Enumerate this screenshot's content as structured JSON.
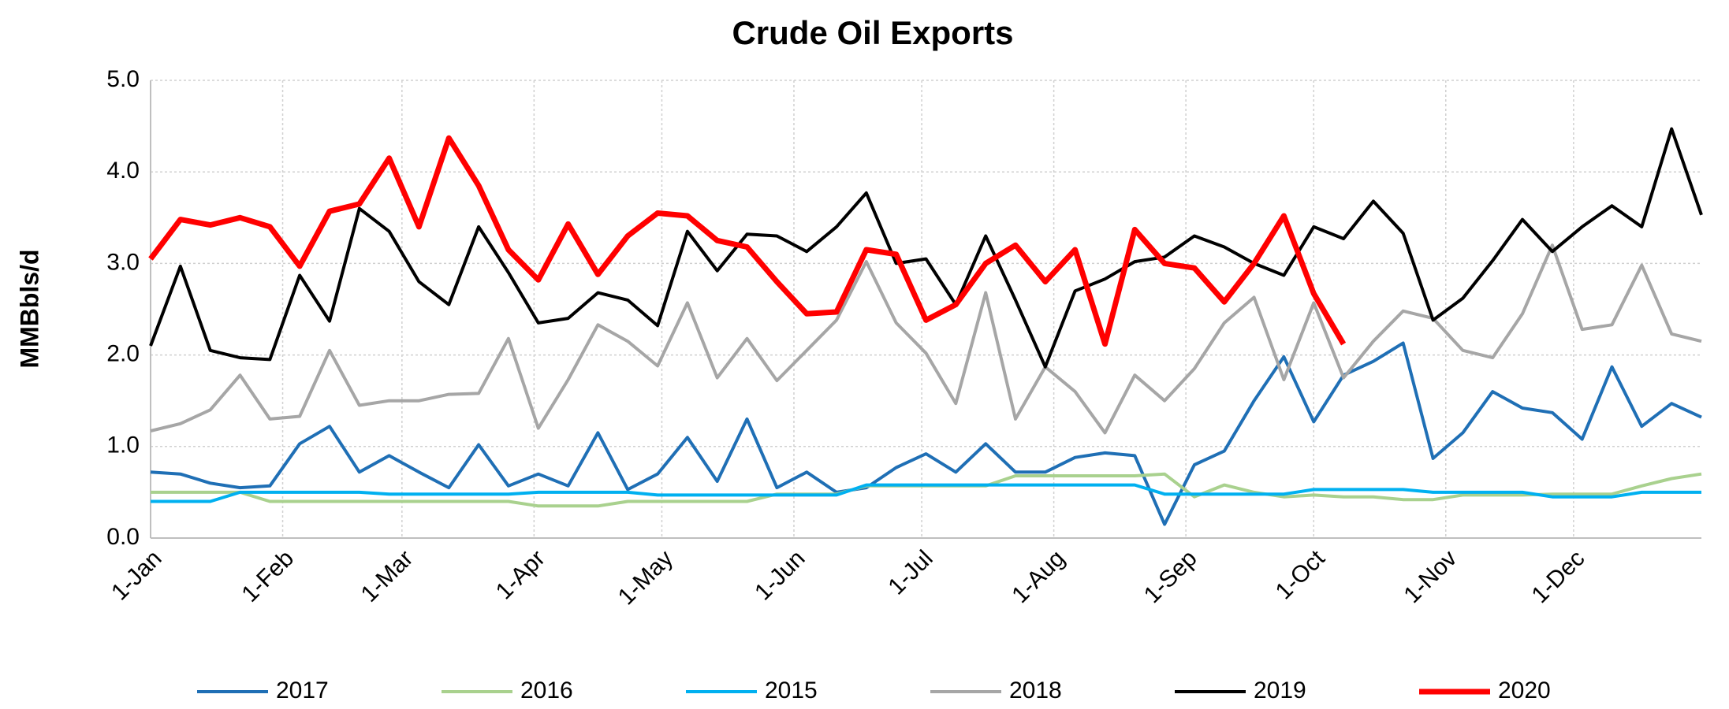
{
  "chart_data": {
    "type": "line",
    "title": "Crude Oil Exports",
    "y_label": "MMBbls/d",
    "x": [
      0,
      7,
      14,
      21,
      28,
      35,
      42,
      49,
      56,
      63,
      70,
      77,
      84,
      91,
      98,
      105,
      112,
      119,
      126,
      133,
      140,
      147,
      154,
      161,
      168,
      175,
      182,
      189,
      196,
      203,
      210,
      217,
      224,
      231,
      238,
      245,
      252,
      259,
      266,
      273,
      280,
      287,
      294,
      301,
      308,
      315,
      322,
      329,
      336,
      343,
      350,
      357,
      364
    ],
    "xlim": [
      0,
      364
    ],
    "xticks": [
      {
        "value": 0,
        "label": "1-Jan"
      },
      {
        "value": 31,
        "label": "1-Feb"
      },
      {
        "value": 59,
        "label": "1-Mar"
      },
      {
        "value": 90,
        "label": "1-Apr"
      },
      {
        "value": 120,
        "label": "1-May"
      },
      {
        "value": 151,
        "label": "1-Jun"
      },
      {
        "value": 181,
        "label": "1-Jul"
      },
      {
        "value": 212,
        "label": "1-Aug"
      },
      {
        "value": 243,
        "label": "1-Sep"
      },
      {
        "value": 273,
        "label": "1-Oct"
      },
      {
        "value": 304,
        "label": "1-Nov"
      },
      {
        "value": 334,
        "label": "1-Dec"
      }
    ],
    "ylim": [
      0,
      5
    ],
    "yticks": [
      {
        "value": 0,
        "label": "0.0"
      },
      {
        "value": 1,
        "label": "1.0"
      },
      {
        "value": 2,
        "label": "2.0"
      },
      {
        "value": 3,
        "label": "3.0"
      },
      {
        "value": 4,
        "label": "4.0"
      },
      {
        "value": 5,
        "label": "5.0"
      }
    ],
    "grid": true,
    "legend": "bottom",
    "series": [
      {
        "name": "2017",
        "color": "#1f6fb5",
        "width": 4,
        "values": [
          0.72,
          0.7,
          0.6,
          0.55,
          0.57,
          1.03,
          1.22,
          0.72,
          0.9,
          0.72,
          0.55,
          1.02,
          0.57,
          0.7,
          0.57,
          1.15,
          0.53,
          0.7,
          1.1,
          0.62,
          1.3,
          0.55,
          0.72,
          0.5,
          0.55,
          0.77,
          0.92,
          0.72,
          1.03,
          0.72,
          0.72,
          0.88,
          0.93,
          0.9,
          0.15,
          0.8,
          0.95,
          1.5,
          1.98,
          1.27,
          1.78,
          1.93,
          2.13,
          0.87,
          1.15,
          1.6,
          1.42,
          1.37,
          1.08,
          1.87,
          1.22,
          1.47,
          1.32
        ]
      },
      {
        "name": "2016",
        "color": "#a9d18e",
        "width": 4,
        "values": [
          0.5,
          0.5,
          0.5,
          0.5,
          0.4,
          0.4,
          0.4,
          0.4,
          0.4,
          0.4,
          0.4,
          0.4,
          0.4,
          0.35,
          0.35,
          0.35,
          0.4,
          0.4,
          0.4,
          0.4,
          0.4,
          0.48,
          0.48,
          0.48,
          0.57,
          0.57,
          0.57,
          0.57,
          0.57,
          0.68,
          0.68,
          0.68,
          0.68,
          0.68,
          0.7,
          0.45,
          0.58,
          0.5,
          0.45,
          0.47,
          0.45,
          0.45,
          0.42,
          0.42,
          0.47,
          0.47,
          0.47,
          0.48,
          0.48,
          0.48,
          0.57,
          0.65,
          0.7
        ]
      },
      {
        "name": "2015",
        "color": "#00b0f0",
        "width": 4,
        "values": [
          0.4,
          0.4,
          0.4,
          0.5,
          0.5,
          0.5,
          0.5,
          0.5,
          0.48,
          0.48,
          0.48,
          0.48,
          0.48,
          0.5,
          0.5,
          0.5,
          0.5,
          0.47,
          0.47,
          0.47,
          0.47,
          0.47,
          0.47,
          0.47,
          0.58,
          0.58,
          0.58,
          0.58,
          0.58,
          0.58,
          0.58,
          0.58,
          0.58,
          0.58,
          0.48,
          0.48,
          0.48,
          0.48,
          0.48,
          0.53,
          0.53,
          0.53,
          0.53,
          0.5,
          0.5,
          0.5,
          0.5,
          0.45,
          0.45,
          0.45,
          0.5,
          0.5,
          0.5
        ]
      },
      {
        "name": "2018",
        "color": "#a6a6a6",
        "width": 4,
        "values": [
          1.17,
          1.25,
          1.4,
          1.78,
          1.3,
          1.33,
          2.05,
          1.45,
          1.5,
          1.5,
          1.57,
          1.58,
          2.18,
          1.2,
          1.73,
          2.33,
          2.15,
          1.88,
          2.57,
          1.75,
          2.18,
          1.72,
          2.05,
          2.38,
          3.02,
          2.35,
          2.02,
          1.47,
          2.68,
          1.3,
          1.87,
          1.6,
          1.15,
          1.78,
          1.5,
          1.85,
          2.35,
          2.63,
          1.73,
          2.57,
          1.75,
          2.15,
          2.48,
          2.4,
          2.05,
          1.97,
          2.45,
          3.2,
          2.28,
          2.33,
          2.98,
          2.23,
          2.15
        ]
      },
      {
        "name": "2019",
        "color": "#000000",
        "width": 4,
        "values": [
          2.1,
          2.97,
          2.05,
          1.97,
          1.95,
          2.87,
          2.37,
          3.6,
          3.35,
          2.8,
          2.55,
          3.4,
          2.9,
          2.35,
          2.4,
          2.68,
          2.6,
          2.32,
          3.35,
          2.92,
          3.32,
          3.3,
          3.13,
          3.4,
          3.77,
          3.0,
          3.05,
          2.55,
          3.3,
          2.6,
          1.87,
          2.7,
          2.83,
          3.02,
          3.07,
          3.3,
          3.18,
          3.0,
          2.87,
          3.4,
          3.27,
          3.68,
          3.33,
          2.38,
          2.62,
          3.03,
          3.48,
          3.13,
          3.4,
          3.63,
          3.4,
          4.47,
          3.53
        ]
      },
      {
        "name": "2020",
        "color": "#ff0000",
        "width": 7,
        "values": [
          3.05,
          3.48,
          3.42,
          3.5,
          3.4,
          2.97,
          3.57,
          3.65,
          4.15,
          3.4,
          4.37,
          3.85,
          3.15,
          2.82,
          3.43,
          2.88,
          3.3,
          3.55,
          3.52,
          3.25,
          3.18,
          2.8,
          2.45,
          2.47,
          3.15,
          3.1,
          2.38,
          2.55,
          3.0,
          3.2,
          2.8,
          3.15,
          2.12,
          3.37,
          3.0,
          2.95,
          2.58,
          3.0,
          3.52,
          2.67,
          2.12,
          null,
          null,
          null,
          null,
          null,
          null,
          null,
          null,
          null,
          null,
          null,
          null
        ]
      }
    ]
  }
}
